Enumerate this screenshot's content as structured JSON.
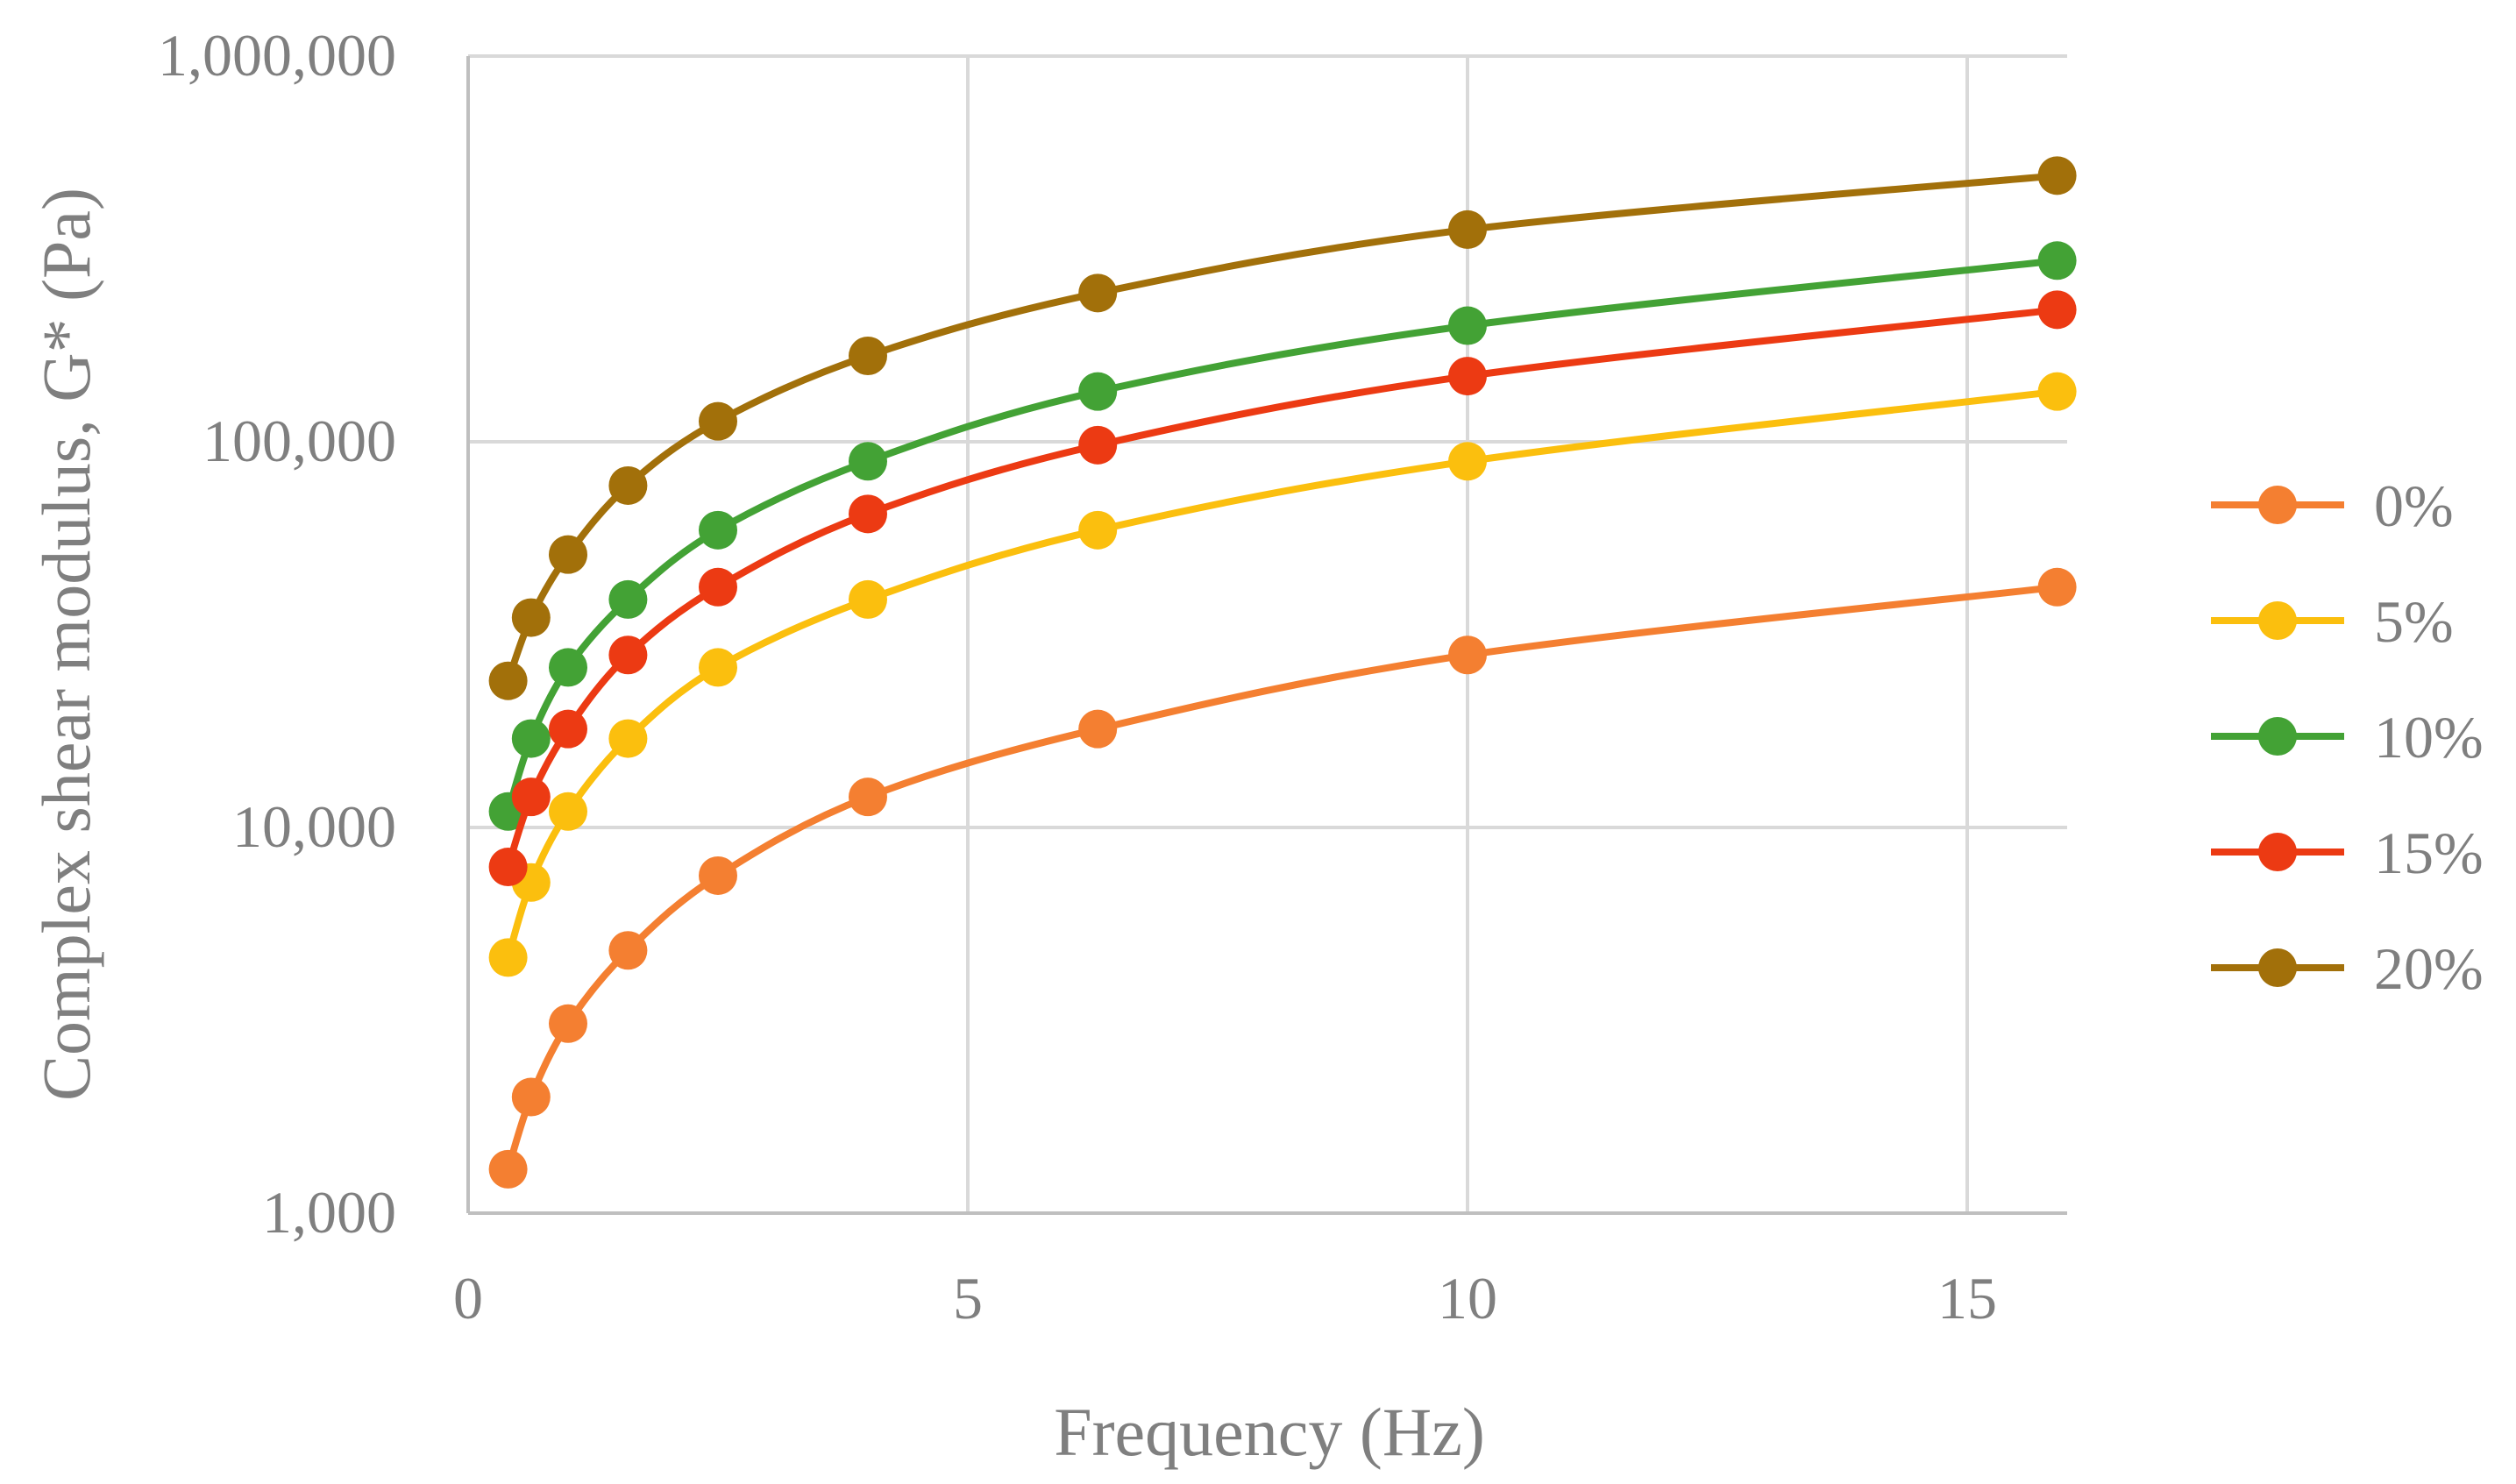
{
  "chart_data": {
    "type": "line",
    "title": "",
    "xlabel": "Frequency (Hz)",
    "ylabel": "Complex shear modulus, G* (Pa)",
    "yscale": "log",
    "xlim": [
      0,
      16
    ],
    "ylim": [
      1000,
      1000000
    ],
    "x_ticks": [
      0,
      5,
      10,
      15
    ],
    "x_tick_labels": [
      "0",
      "5",
      "10",
      "15"
    ],
    "y_ticks": [
      1000,
      10000,
      100000,
      1000000
    ],
    "y_tick_labels": [
      "1,000",
      "10,000",
      "100,000",
      "1,000,000"
    ],
    "grid": true,
    "legend_position": "right",
    "x": [
      0.4,
      0.63,
      1.0,
      1.6,
      2.5,
      4.0,
      6.3,
      10.0,
      15.9
    ],
    "series": [
      {
        "name": "0%",
        "color": "#f47f31",
        "values": [
          1300,
          2000,
          3100,
          4800,
          7500,
          12000,
          18000,
          28000,
          42000
        ]
      },
      {
        "name": "5%",
        "color": "#fbbf0e",
        "values": [
          4600,
          7200,
          11000,
          17000,
          26000,
          39000,
          59000,
          89000,
          135000
        ]
      },
      {
        "name": "10%",
        "color": "#43a235",
        "values": [
          11000,
          17000,
          26000,
          39000,
          59000,
          89000,
          135000,
          200000,
          295000
        ]
      },
      {
        "name": "15%",
        "color": "#ec3a13",
        "values": [
          7900,
          12000,
          18000,
          28000,
          42000,
          65000,
          98000,
          148000,
          220000
        ]
      },
      {
        "name": "20%",
        "color": "#a2700a",
        "values": [
          24000,
          35000,
          51000,
          77000,
          113000,
          167000,
          243000,
          355000,
          490000
        ]
      }
    ]
  }
}
